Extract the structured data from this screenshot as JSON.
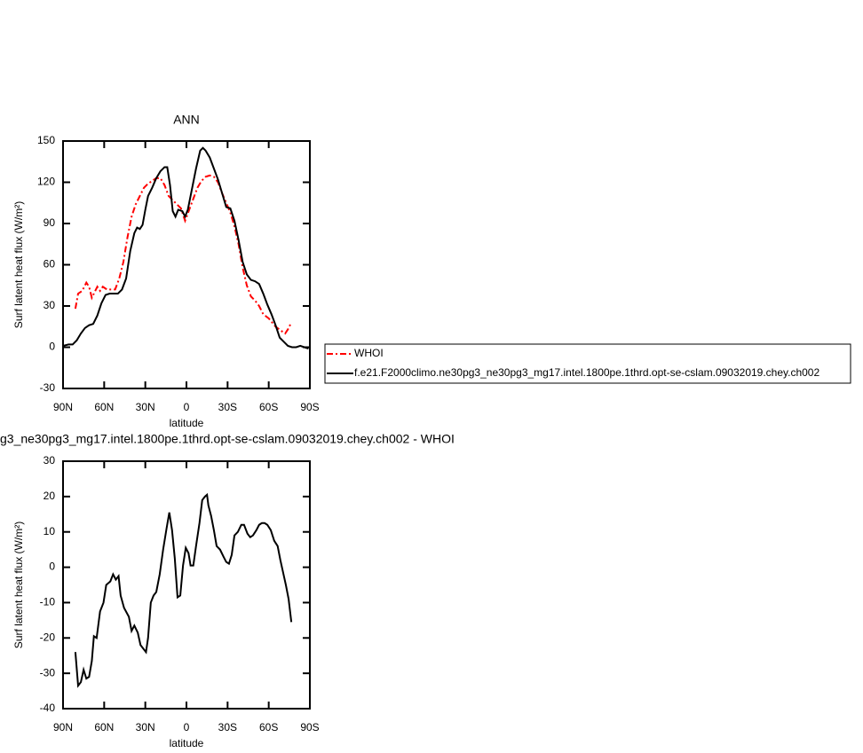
{
  "chart_data": [
    {
      "type": "line",
      "title": "ANN",
      "xlabel": "latitude",
      "ylabel": "Surf latent heat flux (W/m²)",
      "xlim": [
        90,
        -90
      ],
      "xticks": [
        {
          "value": 90,
          "label": "90N"
        },
        {
          "value": 60,
          "label": "60N"
        },
        {
          "value": 30,
          "label": "30N"
        },
        0,
        {
          "value": -30,
          "label": "30S"
        },
        {
          "value": -60,
          "label": "60S"
        },
        {
          "value": -90,
          "label": "90S"
        }
      ],
      "ylim": [
        -30,
        150
      ],
      "yticks": [
        -30,
        0,
        30,
        60,
        90,
        120,
        150
      ],
      "legend": "right",
      "series": [
        {
          "name": "WHOI",
          "color": "#ff0000",
          "dash": true,
          "x": [
            81,
            79,
            76,
            73,
            71,
            69,
            67,
            65,
            63,
            61,
            58,
            55,
            52,
            49,
            46,
            43,
            40,
            37,
            34,
            31,
            28,
            25,
            22,
            19,
            16,
            13,
            10,
            7,
            4,
            1,
            -2,
            -5,
            -8,
            -11,
            -14,
            -17,
            -20,
            -23,
            -26,
            -29,
            -32,
            -35,
            -38,
            -41,
            -44,
            -47,
            -50,
            -53,
            -56,
            -60,
            -65,
            -69,
            -72,
            -74,
            -76
          ],
          "values": [
            28,
            39,
            41,
            47,
            44,
            36,
            40,
            44,
            41,
            44,
            42,
            42,
            42,
            50,
            62,
            80,
            95,
            104,
            110,
            116,
            119,
            121,
            123,
            123,
            118,
            110,
            107,
            104,
            101,
            92,
            100,
            108,
            116,
            121,
            124,
            125,
            124,
            120,
            112,
            105,
            98,
            88,
            75,
            58,
            45,
            37,
            34,
            30,
            24,
            21,
            15,
            12,
            10,
            13,
            17
          ]
        },
        {
          "name": "f.e21.F2000climo.ne30pg3_ne30pg3_mg17.intel.1800pe.1thrd.opt-se-cslam.09032019.chey.ch002",
          "color": "#000000",
          "dash": false,
          "x": [
            90,
            86,
            83,
            80,
            77,
            74,
            71,
            68,
            65,
            62,
            59,
            56,
            53,
            50,
            47,
            44,
            41,
            38,
            36,
            34,
            32,
            30,
            28,
            25,
            22,
            19,
            16,
            14,
            12,
            10,
            8,
            6,
            3,
            1,
            -1,
            -4,
            -7,
            -10,
            -12,
            -14,
            -17,
            -20,
            -23,
            -26,
            -29,
            -32,
            -35,
            -38,
            -41,
            -44,
            -47,
            -50,
            -53,
            -56,
            -59,
            -62,
            -65,
            -68,
            -71,
            -74,
            -77,
            -80,
            -83,
            -86,
            -89
          ],
          "values": [
            1,
            2,
            2,
            5,
            10,
            14,
            16,
            17,
            23,
            32,
            38,
            39,
            39,
            39,
            42,
            50,
            70,
            83,
            87,
            86,
            89,
            100,
            110,
            116,
            123,
            128,
            131,
            131,
            118,
            99,
            95,
            100,
            99,
            95,
            100,
            115,
            130,
            143,
            145,
            143,
            138,
            130,
            122,
            112,
            102,
            101,
            92,
            78,
            62,
            53,
            49,
            48,
            46,
            39,
            31,
            24,
            16,
            7,
            4,
            1,
            0,
            0,
            1,
            0,
            -1
          ]
        }
      ]
    },
    {
      "type": "line",
      "title": "g3_ne30pg3_mg17.intel.1800pe.1thrd.opt-se-cslam.09032019.chey.ch002 - WHOI",
      "xlabel": "latitude",
      "ylabel": "Surf latent heat flux (W/m²)",
      "xlim": [
        90,
        -90
      ],
      "xticks": [
        {
          "value": 90,
          "label": "90N"
        },
        {
          "value": 60,
          "label": "60N"
        },
        {
          "value": 30,
          "label": "30N"
        },
        0,
        {
          "value": -30,
          "label": "30S"
        },
        {
          "value": -60,
          "label": "60S"
        },
        {
          "value": -90,
          "label": "90S"
        }
      ],
      "ylim": [
        -40,
        30
      ],
      "yticks": [
        -40,
        -30,
        -20,
        -10,
        0,
        10,
        20,
        30
      ],
      "series": [
        {
          "color": "#000000",
          "dash": false,
          "x": [
            81,
            79,
            77,
            75,
            73,
            71,
            69,
            67.5,
            65.5,
            63,
            60.5,
            58.5,
            55.5,
            53.5,
            51.5,
            49.5,
            48,
            45.5,
            42,
            40,
            38,
            35.5,
            33.5,
            29.5,
            28,
            26,
            24,
            22,
            19.5,
            17,
            14.5,
            12.5,
            10.5,
            8.5,
            6.5,
            4.5,
            2.5,
            0.5,
            -1.5,
            -3,
            -5,
            -7,
            -9.5,
            -11.5,
            -13.5,
            -15,
            -16,
            -18,
            -20,
            -22,
            -24.5,
            -27,
            -29,
            -31,
            -33,
            -35,
            -37.5,
            -40,
            -42,
            -44.5,
            -46.5,
            -48.5,
            -51,
            -53,
            -55,
            -57,
            -59,
            -61.5,
            -64,
            -66.5,
            -68.5,
            -70.5,
            -72.5,
            -74.5,
            -76.5
          ],
          "values": [
            -24,
            -33.5,
            -32.5,
            -29,
            -31.5,
            -31,
            -26.5,
            -19.5,
            -20,
            -12.5,
            -10,
            -5,
            -4,
            -2,
            -3.5,
            -2.5,
            -8,
            -11.5,
            -14,
            -18,
            -16.5,
            -18.5,
            -22,
            -24,
            -20,
            -10,
            -8,
            -7,
            -2,
            5,
            11,
            15.5,
            10.5,
            2.5,
            -8.5,
            -8,
            0.5,
            5.5,
            4,
            0.5,
            0.5,
            6,
            12.5,
            19,
            20,
            20.5,
            17.5,
            14.5,
            10.5,
            6,
            5,
            3,
            1.5,
            1,
            3.5,
            9,
            10,
            12,
            12,
            9.5,
            8.5,
            9,
            10.5,
            12,
            12.5,
            12.5,
            12,
            10.5,
            7.5,
            6,
            2,
            -1.5,
            -5,
            -9,
            -15.5
          ]
        }
      ]
    }
  ]
}
